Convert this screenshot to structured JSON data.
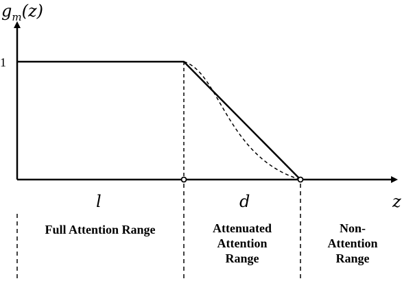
{
  "diagram": {
    "y_axis_label": {
      "fn": "g",
      "sub": "m",
      "arg": "(z)"
    },
    "x_axis_label": "z",
    "y_tick_one": "1",
    "segment_labels": {
      "full": "l",
      "attenuated": "d"
    },
    "regions": [
      {
        "id": "full",
        "label": "Full Attention Range"
      },
      {
        "id": "attenuated",
        "label": "Attenuated\nAttention\nRange"
      },
      {
        "id": "non",
        "label": "Non-\nAttention\nRange"
      }
    ],
    "line_color": "#000000"
  }
}
